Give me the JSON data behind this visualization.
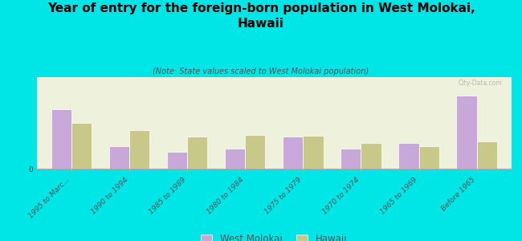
{
  "title": "Year of entry for the foreign-born population in West Molokai,\nHawaii",
  "subtitle": "(Note: State values scaled to West Molokai population)",
  "categories": [
    "1995 to Marc...",
    "1990 to 1994",
    "1985 to 1989",
    "1980 to 1984",
    "1975 to 1979",
    "1970 to 1974",
    "1965 to 1969",
    "Before 1965"
  ],
  "west_molokai": [
    6.5,
    2.5,
    1.8,
    2.2,
    3.5,
    2.2,
    2.8,
    8.0
  ],
  "hawaii": [
    5.0,
    4.2,
    3.5,
    3.7,
    3.6,
    2.8,
    2.5,
    3.0
  ],
  "bar_color_wm": "#c8a8d8",
  "bar_color_hi": "#c8c888",
  "bg_color": "#00e5e5",
  "chart_bg": "#eef2dc",
  "title_fontsize": 11,
  "subtitle_fontsize": 7,
  "tick_fontsize": 6.5,
  "legend_fontsize": 8.5,
  "bar_width": 0.35,
  "ylim": [
    0,
    10
  ],
  "watermark": "City-Data.com"
}
